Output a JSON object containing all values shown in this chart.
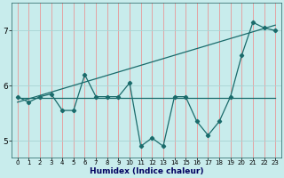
{
  "xlabel": "Humidex (Indice chaleur)",
  "bg_color": "#c8ecec",
  "line_color": "#1a6b6b",
  "xlim": [
    -0.5,
    23.5
  ],
  "ylim": [
    4.7,
    7.5
  ],
  "xticks": [
    0,
    1,
    2,
    3,
    4,
    5,
    6,
    7,
    8,
    9,
    10,
    11,
    12,
    13,
    14,
    15,
    16,
    17,
    18,
    19,
    20,
    21,
    22,
    23
  ],
  "yticks": [
    5,
    6,
    7
  ],
  "series1_x": [
    0,
    1,
    2,
    3,
    4,
    5,
    6,
    7,
    8,
    9,
    10,
    11,
    12,
    13,
    14,
    15,
    16,
    17,
    18,
    19,
    20,
    21,
    22,
    23
  ],
  "series1_y": [
    5.8,
    5.7,
    5.8,
    5.85,
    5.55,
    5.55,
    6.2,
    5.8,
    5.8,
    5.8,
    6.05,
    4.9,
    5.05,
    4.9,
    5.8,
    5.8,
    5.35,
    5.1,
    5.35,
    5.8,
    6.55,
    7.15,
    7.05,
    7.0
  ],
  "flat_line_x": [
    0,
    23
  ],
  "flat_line_y": [
    5.78,
    5.78
  ],
  "rising_line_x": [
    0,
    23
  ],
  "rising_line_y": [
    5.7,
    7.1
  ],
  "grid_x_color": "#e89898",
  "grid_y_color": "#a8d4d4",
  "xlabel_color": "#000060",
  "xlabel_fontsize": 6.5,
  "tick_fontsize": 5.0,
  "ytick_fontsize": 6.5
}
